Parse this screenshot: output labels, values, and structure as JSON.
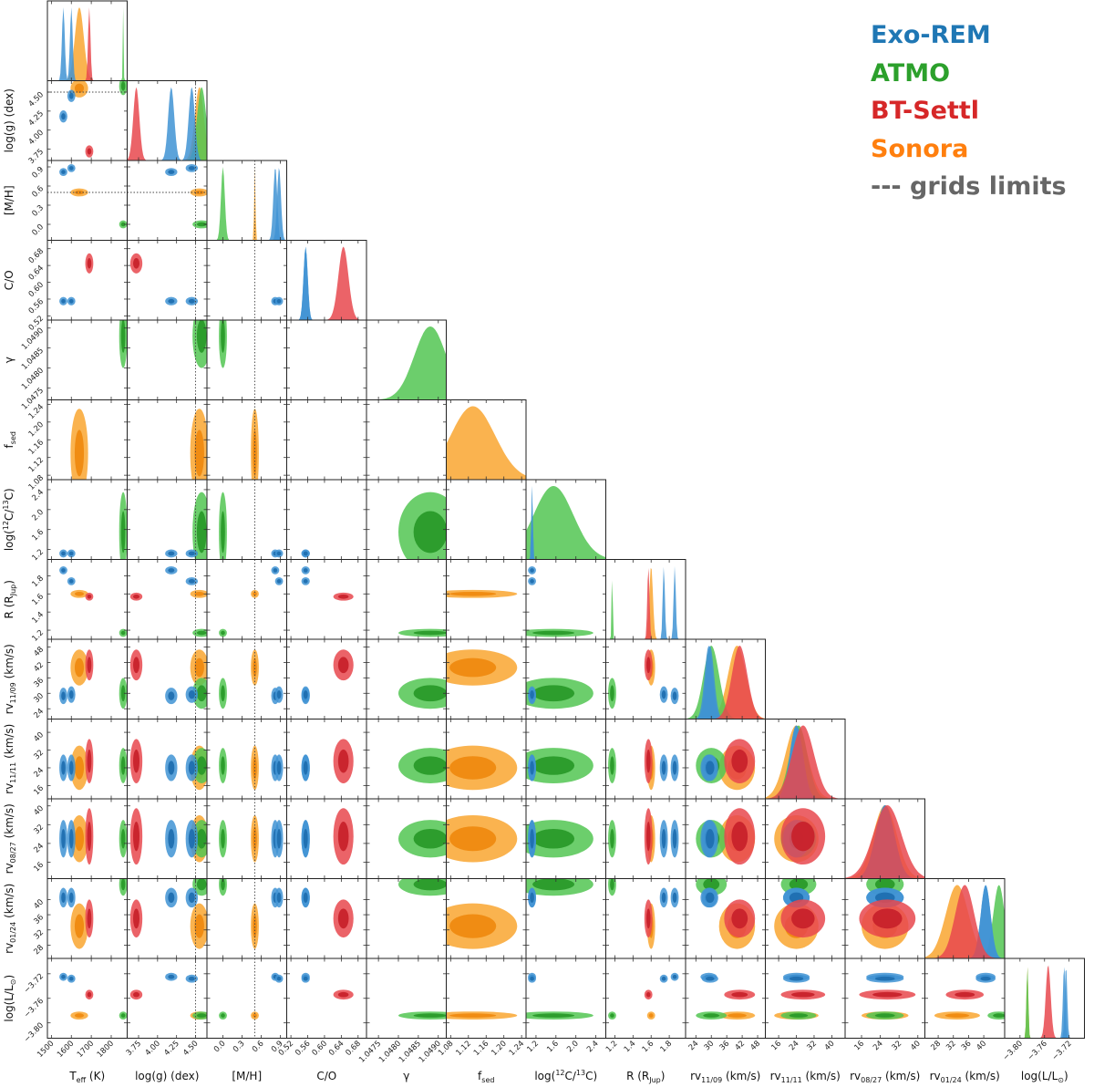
{
  "chart_data": {
    "type": "corner",
    "legend": [
      {
        "label": "Exo-REM",
        "color": "#1f77b4"
      },
      {
        "label": "ATMO",
        "color": "#2ca02c"
      },
      {
        "label": "BT-Settl",
        "color": "#d62728"
      },
      {
        "label": "Sonora",
        "color": "#ff7f0e"
      },
      {
        "label": "--- grids limits",
        "color": "#666666"
      }
    ],
    "colors": {
      "Exo-REM": "#3f93d4",
      "ATMO": "#52c652",
      "BT-Settl": "#e8484d",
      "Sonora": "#f9a630"
    },
    "parameters": [
      {
        "label": "Teff (K)",
        "xticks": [
          "1500",
          "1600",
          "1700",
          "1800"
        ],
        "yticks": [],
        "range": [
          1480,
          1880
        ]
      },
      {
        "label": "log(g) (dex)",
        "xticks": [
          "3.75",
          "4.00",
          "4.25",
          "4.50"
        ],
        "yticks": [
          "3.75",
          "4.00",
          "4.25",
          "4.50"
        ],
        "range": [
          3.6,
          4.65
        ],
        "limit": 4.5
      },
      {
        "label": "[M/H]",
        "xticks": [
          "0.0",
          "0.3",
          "0.6",
          "0.9"
        ],
        "yticks": [
          "0.0",
          "0.3",
          "0.6",
          "0.9"
        ],
        "range": [
          -0.25,
          1.0
        ],
        "limit": 0.5
      },
      {
        "label": "C/O",
        "xticks": [
          "0.52",
          "0.56",
          "0.60",
          "0.64",
          "0.68"
        ],
        "yticks": [
          "0.52",
          "0.56",
          "0.60",
          "0.64",
          "0.68"
        ],
        "range": [
          0.51,
          0.7
        ]
      },
      {
        "label": "γ",
        "xticks": [
          "1.0475",
          "1.0480",
          "1.0485",
          "1.0490"
        ],
        "yticks": [
          "1.0475",
          "1.0480",
          "1.0485",
          "1.0490"
        ],
        "range": [
          1.0472,
          1.0492
        ]
      },
      {
        "label": "fsed",
        "xticks": [
          "1.08",
          "1.12",
          "1.16",
          "1.20",
          "1.24"
        ],
        "yticks": [
          "1.08",
          "1.12",
          "1.16",
          "1.20",
          "1.24"
        ],
        "range": [
          1.07,
          1.25
        ]
      },
      {
        "label": "log(12C/13C)",
        "xticks": [
          "1.2",
          "1.6",
          "2.0",
          "2.4"
        ],
        "yticks": [
          "1.2",
          "1.6",
          "2.0",
          "2.4"
        ],
        "range": [
          1.0,
          2.6
        ]
      },
      {
        "label": "R (RJup)",
        "xticks": [
          "1.2",
          "1.4",
          "1.6",
          "1.8"
        ],
        "yticks": [
          "1.2",
          "1.4",
          "1.6",
          "1.8"
        ],
        "range": [
          1.1,
          1.98
        ]
      },
      {
        "label": "rv11/09 (km/s)",
        "xticks": [
          "24",
          "30",
          "36",
          "42",
          "48"
        ],
        "yticks": [
          "24",
          "30",
          "36",
          "42",
          "48"
        ],
        "range": [
          20,
          51
        ]
      },
      {
        "label": "rv11/11 (km/s)",
        "xticks": [
          "16",
          "24",
          "32",
          "40"
        ],
        "yticks": [
          "16",
          "24",
          "32",
          "40"
        ],
        "range": [
          10,
          46
        ]
      },
      {
        "label": "rv08/27 (km/s)",
        "xticks": [
          "16",
          "24",
          "32",
          "40"
        ],
        "yticks": [
          "16",
          "24",
          "32",
          "40"
        ],
        "range": [
          9,
          43
        ]
      },
      {
        "label": "rv01/24 (km/s)",
        "xticks": [
          "28",
          "32",
          "36",
          "40"
        ],
        "yticks": [
          "28",
          "32",
          "36",
          "40"
        ],
        "range": [
          24.5,
          45.5
        ]
      },
      {
        "label": "log(L/L⊙)",
        "xticks": [
          "−3.80",
          "−3.76",
          "−3.72"
        ],
        "yticks": [
          "−3.72",
          "−3.76",
          "−3.80"
        ],
        "range": [
          -3.825,
          -3.695
        ]
      }
    ],
    "axis_labels": [
      {
        "pre": "T",
        "sub": "eff",
        "sup": "",
        "post": " (K)"
      },
      {
        "pre": "log(g) (dex)",
        "sub": "",
        "sup": "",
        "post": ""
      },
      {
        "pre": "[M/H]",
        "sub": "",
        "sup": "",
        "post": ""
      },
      {
        "pre": "C/O",
        "sub": "",
        "sup": "",
        "post": ""
      },
      {
        "pre": "γ",
        "sub": "",
        "sup": "",
        "post": ""
      },
      {
        "pre": "f",
        "sub": "sed",
        "sup": "",
        "post": ""
      },
      {
        "pre": "log(",
        "sup": "12",
        "mid": "C/",
        "sup2": "13",
        "post": "C)"
      },
      {
        "pre": "R (R",
        "sub": "Jup",
        "sup": "",
        "post": ")"
      },
      {
        "pre": "rv",
        "sub": "11/09",
        "sup": "",
        "post": " (km/s)"
      },
      {
        "pre": "rv",
        "sub": "11/11",
        "sup": "",
        "post": " (km/s)"
      },
      {
        "pre": "rv",
        "sub": "08/27",
        "sup": "",
        "post": " (km/s)"
      },
      {
        "pre": "rv",
        "sub": "01/24",
        "sup": "",
        "post": " (km/s)"
      },
      {
        "pre": "log(L/L",
        "sub": "⊙",
        "sup": "",
        "post": ")"
      }
    ],
    "posteriors": {
      "Exo-REM": [
        {
          "means": [
            1560,
            4.18,
            0.82,
            0.555,
            null,
            null,
            1.12,
            1.86,
            29,
            24,
            26,
            40.5,
            -3.725
          ],
          "sds": [
            7,
            0.04,
            0.03,
            0.005,
            null,
            null,
            0.015,
            0.012,
            1.6,
            3,
            4,
            1.3,
            0.002
          ]
        },
        {
          "means": [
            1600,
            4.45,
            0.88,
            0.555,
            null,
            null,
            1.12,
            1.74,
            29.5,
            24,
            26,
            40.5,
            -3.728
          ],
          "sds": [
            7,
            0.04,
            0.03,
            0.005,
            null,
            null,
            0.015,
            0.012,
            1.6,
            3,
            4,
            1.3,
            0.002
          ]
        }
      ],
      "ATMO": [
        {
          "means": [
            1860,
            4.58,
            0.0,
            null,
            1.0488,
            null,
            1.55,
            1.17,
            30,
            25,
            26,
            44,
            -3.788
          ],
          "sds": [
            2,
            0.06,
            0.03,
            null,
            0.0004,
            null,
            0.4,
            0.006,
            3,
            4,
            4,
            1.5,
            0.0015
          ]
        }
      ],
      "BT-Settl": [
        {
          "means": [
            1690,
            3.72,
            null,
            0.645,
            null,
            null,
            null,
            1.57,
            41,
            27,
            27,
            35,
            -3.754
          ],
          "sds": [
            6,
            0.04,
            null,
            0.012,
            null,
            null,
            null,
            0.012,
            3,
            5,
            6,
            2.5,
            0.004
          ]
        }
      ],
      "Sonora": [
        {
          "means": [
            1640,
            4.55,
            0.5,
            null,
            null,
            1.13,
            null,
            1.6,
            40,
            24,
            26,
            33,
            -3.788
          ],
          "sds": [
            22,
            0.06,
            0.01,
            null,
            null,
            0.05,
            null,
            0.02,
            3.5,
            5,
            5,
            3,
            0.0015
          ]
        }
      ]
    }
  }
}
